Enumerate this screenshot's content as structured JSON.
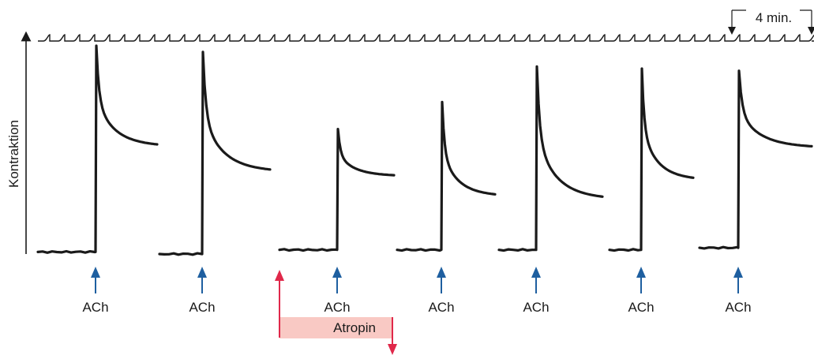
{
  "chart_data": {
    "type": "line",
    "title": "",
    "ylabel": "Kontraktion",
    "xlabel": "",
    "time_scale_label": "4 min.",
    "stimulus_label": "ACh",
    "drug_label": "Atropin",
    "ylim": [
      0,
      100
    ],
    "grid": false,
    "legend": "none",
    "colors": {
      "trace": "#1a1a1a",
      "ach_arrow": "#1e5fa0",
      "atropin_arrow": "#e0284a",
      "atropin_bar": "#f9c9c4"
    },
    "applications": [
      {
        "label": "ACh",
        "baseline": 1,
        "peak": 100,
        "end": 53
      },
      {
        "label": "ACh",
        "baseline": 0,
        "peak": 97,
        "end": 41
      },
      {
        "label": "ACh",
        "baseline": 2,
        "peak": 60,
        "end": 38
      },
      {
        "label": "ACh",
        "baseline": 2,
        "peak": 73,
        "end": 29
      },
      {
        "label": "ACh",
        "baseline": 2,
        "peak": 90,
        "end": 28
      },
      {
        "label": "ACh",
        "baseline": 2,
        "peak": 89,
        "end": 37
      },
      {
        "label": "ACh",
        "baseline": 3,
        "peak": 88,
        "end": 52
      }
    ],
    "atropin": {
      "start_application": 3,
      "end_application": 3
    }
  }
}
